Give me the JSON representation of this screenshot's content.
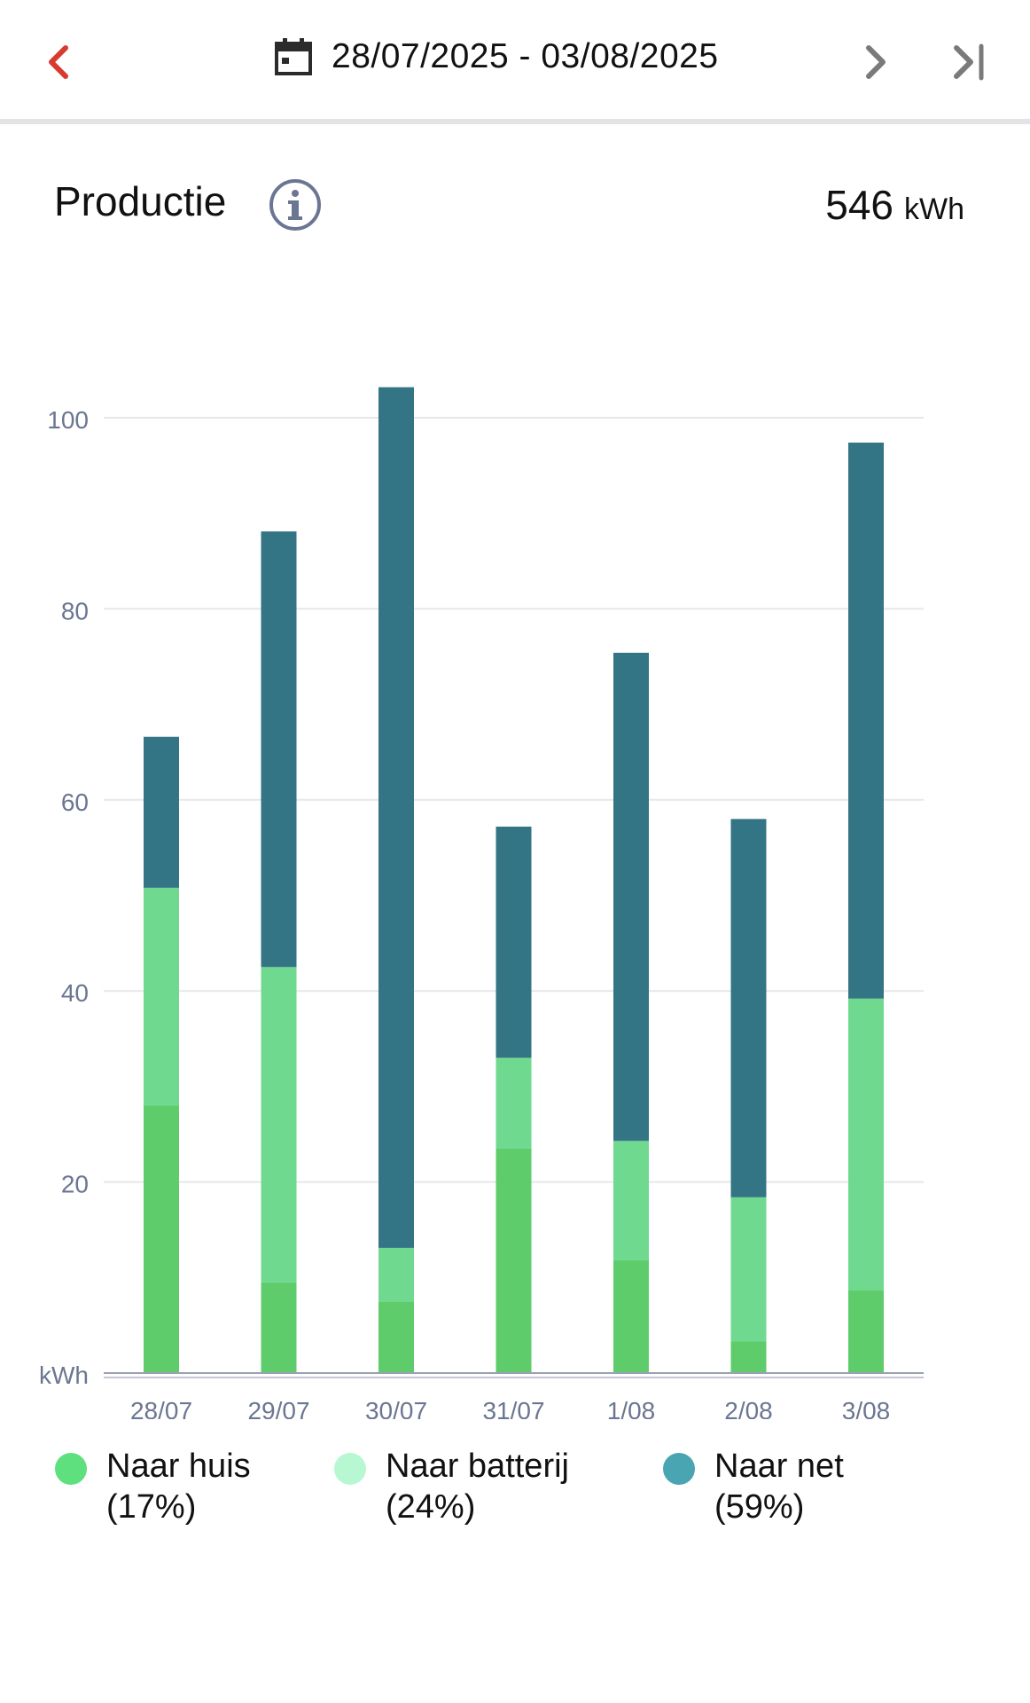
{
  "header": {
    "date_range": "28/07/2025 - 03/08/2025",
    "icons": {
      "back": "chevron-left-icon",
      "calendar": "calendar-icon",
      "next": "chevron-right-icon",
      "last": "skip-to-end-icon"
    },
    "colors": {
      "back": "#d93a2e",
      "nav": "#7a7a7a"
    }
  },
  "summary": {
    "title": "Productie",
    "total_value": "546",
    "total_unit": "kWh"
  },
  "chart_data": {
    "type": "bar",
    "stacked": true,
    "categories": [
      "28/07",
      "29/07",
      "30/07",
      "31/07",
      "1/08",
      "2/08",
      "3/08"
    ],
    "series": [
      {
        "name": "Naar huis",
        "percent": "(17%)",
        "color": "#5ecc6a",
        "legend_color": "#5fe07f",
        "values": [
          28,
          9.5,
          7.5,
          23.5,
          11.8,
          3.3,
          8.7
        ]
      },
      {
        "name": "Naar batterij",
        "percent": "(24%)",
        "color": "#6fd98f",
        "legend_color": "#b7f8d2",
        "values": [
          22.8,
          33,
          5.6,
          9.5,
          12.5,
          15.1,
          30.5
        ]
      },
      {
        "name": "Naar net",
        "percent": "(59%)",
        "color": "#337584",
        "legend_color": "#49a5b1",
        "values": [
          15.8,
          45.6,
          90.1,
          24.2,
          51.1,
          39.6,
          58.2
        ]
      }
    ],
    "ylabel": "kWh",
    "yticks": [
      20,
      40,
      60,
      80,
      100
    ],
    "ylim": [
      0,
      105
    ],
    "grid": true,
    "legend_placement": "bottom"
  }
}
